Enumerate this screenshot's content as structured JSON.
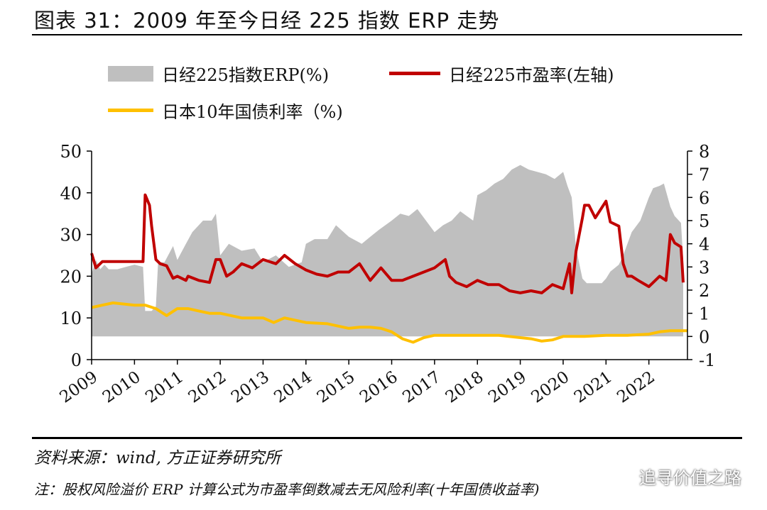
{
  "title": "图表 31：2009 年至今日经 225 指数 ERP 走势",
  "legend": {
    "erp": "日经225指数ERP(%)",
    "pe": "日经225市盈率(左轴)",
    "jgb": "日本10年国债利率（%)"
  },
  "footer": {
    "source": "资料来源：wind, 方正证券研究所",
    "note": "注：股权风险溢价 ERP 计算公式为市盈率倒数减去无风险利率(十年国债收益率)"
  },
  "watermark": "追寻价值之路",
  "colors": {
    "erp": "#bfbfbf",
    "pe": "#c00000",
    "jgb": "#ffc000"
  },
  "chart_data": {
    "type": "area",
    "x_tick_labels": [
      "2009",
      "2010",
      "2011",
      "2012",
      "2013",
      "2014",
      "2015",
      "2016",
      "2017",
      "2018",
      "2019",
      "2020",
      "2021",
      "2022"
    ],
    "y_left": {
      "lim": [
        0,
        50
      ],
      "ticks": [
        0,
        10,
        20,
        30,
        40,
        50
      ]
    },
    "y_right": {
      "lim": [
        -1,
        8
      ],
      "ticks": [
        -1,
        0,
        1,
        2,
        3,
        4,
        5,
        6,
        7,
        8
      ]
    },
    "series": [
      {
        "name": "日经225市盈率(左轴)",
        "axis": "left",
        "type": "line",
        "x": [
          2009.0,
          2009.1,
          2009.25,
          2009.5,
          2009.75,
          2010.0,
          2010.2,
          2010.25,
          2010.35,
          2010.4,
          2010.5,
          2010.6,
          2010.75,
          2010.9,
          2011.0,
          2011.2,
          2011.25,
          2011.5,
          2011.75,
          2011.9,
          2012.0,
          2012.15,
          2012.3,
          2012.5,
          2012.75,
          2013.0,
          2013.3,
          2013.5,
          2013.75,
          2014.0,
          2014.25,
          2014.5,
          2014.75,
          2015.0,
          2015.25,
          2015.5,
          2015.75,
          2016.0,
          2016.25,
          2016.5,
          2016.75,
          2017.0,
          2017.25,
          2017.35,
          2017.5,
          2017.75,
          2018.0,
          2018.25,
          2018.5,
          2018.75,
          2019.0,
          2019.25,
          2019.5,
          2019.75,
          2020.0,
          2020.15,
          2020.2,
          2020.3,
          2020.45,
          2020.5,
          2020.6,
          2020.75,
          2021.0,
          2021.1,
          2021.3,
          2021.4,
          2021.5,
          2021.6,
          2021.75,
          2022.0,
          2022.25,
          2022.4,
          2022.5,
          2022.6,
          2022.75,
          2022.8
        ],
        "values": [
          25.5,
          22,
          23.5,
          23.5,
          23.5,
          23.5,
          23.5,
          39.5,
          37,
          32,
          24,
          23,
          22.5,
          19.5,
          20,
          19,
          20,
          19,
          18.5,
          24,
          24,
          20,
          21,
          23,
          22,
          24,
          23,
          25,
          23,
          21.5,
          20.5,
          20,
          21,
          21,
          23,
          19,
          22,
          19,
          19,
          20,
          21,
          22,
          24,
          20,
          18.5,
          17.5,
          19,
          18,
          18,
          16.5,
          16,
          16.5,
          16,
          18,
          17,
          23,
          16,
          26,
          34,
          37,
          37,
          34,
          38,
          33,
          32,
          23,
          20,
          20,
          19,
          17.5,
          20,
          19,
          30,
          28,
          27,
          18.5
        ]
      },
      {
        "name": "日本10年国债利率（%)",
        "axis": "right",
        "type": "line",
        "x": [
          2009.0,
          2009.25,
          2009.5,
          2009.75,
          2010.0,
          2010.25,
          2010.5,
          2010.75,
          2011.0,
          2011.25,
          2011.5,
          2011.75,
          2012.0,
          2012.5,
          2013.0,
          2013.25,
          2013.5,
          2014.0,
          2014.5,
          2015.0,
          2015.25,
          2015.5,
          2015.75,
          2016.0,
          2016.25,
          2016.5,
          2016.75,
          2017.0,
          2017.5,
          2018.0,
          2018.5,
          2019.0,
          2019.25,
          2019.5,
          2019.75,
          2020.0,
          2020.5,
          2021.0,
          2021.5,
          2022.0,
          2022.25,
          2022.5,
          2022.75,
          2022.9
        ],
        "values": [
          1.25,
          1.35,
          1.45,
          1.4,
          1.35,
          1.35,
          1.2,
          0.9,
          1.2,
          1.2,
          1.1,
          1.0,
          1.0,
          0.8,
          0.8,
          0.6,
          0.8,
          0.6,
          0.55,
          0.35,
          0.4,
          0.4,
          0.35,
          0.2,
          -0.1,
          -0.25,
          -0.05,
          0.05,
          0.05,
          0.05,
          0.05,
          -0.05,
          -0.1,
          -0.2,
          -0.15,
          0.0,
          0.0,
          0.05,
          0.05,
          0.1,
          0.2,
          0.25,
          0.25,
          0.25
        ]
      },
      {
        "name": "日经225指数ERP(%)",
        "axis": "right",
        "type": "area",
        "x": [
          2009.0,
          2009.1,
          2009.2,
          2009.3,
          2009.4,
          2009.6,
          2009.8,
          2010.0,
          2010.2,
          2010.25,
          2010.4,
          2010.5,
          2010.55,
          2010.7,
          2010.9,
          2011.0,
          2011.2,
          2011.35,
          2011.6,
          2011.8,
          2011.9,
          2012.0,
          2012.2,
          2012.5,
          2012.8,
          2013.0,
          2013.3,
          2013.6,
          2013.9,
          2014.0,
          2014.2,
          2014.5,
          2014.7,
          2015.0,
          2015.3,
          2015.5,
          2015.7,
          2016.0,
          2016.2,
          2016.4,
          2016.6,
          2016.8,
          2017.0,
          2017.2,
          2017.4,
          2017.6,
          2017.9,
          2018.0,
          2018.2,
          2018.4,
          2018.6,
          2018.8,
          2019.0,
          2019.2,
          2019.4,
          2019.6,
          2019.8,
          2020.0,
          2020.1,
          2020.2,
          2020.3,
          2020.45,
          2020.55,
          2020.7,
          2020.9,
          2021.0,
          2021.1,
          2021.3,
          2021.4,
          2021.6,
          2021.8,
          2022.0,
          2022.1,
          2022.25,
          2022.35,
          2022.5,
          2022.6,
          2022.75,
          2022.8
        ],
        "values": [
          2.7,
          3.3,
          2.9,
          3.1,
          2.9,
          2.9,
          3.0,
          3.1,
          3.0,
          1.1,
          1.1,
          1.3,
          3.2,
          3.2,
          3.9,
          3.3,
          4.0,
          4.5,
          5.0,
          5.0,
          5.3,
          3.5,
          4.0,
          3.7,
          3.8,
          3.2,
          3.5,
          3.0,
          3.2,
          4.0,
          4.2,
          4.2,
          4.8,
          4.3,
          4.0,
          4.3,
          4.6,
          5.0,
          5.3,
          5.2,
          5.5,
          5.0,
          4.5,
          4.8,
          5.0,
          5.4,
          5.0,
          6.1,
          6.3,
          6.6,
          6.8,
          7.2,
          7.4,
          7.2,
          7.1,
          7.0,
          6.8,
          7.1,
          6.5,
          6.0,
          3.8,
          2.5,
          2.3,
          2.3,
          2.3,
          2.5,
          2.8,
          3.1,
          3.5,
          4.5,
          5.0,
          6.0,
          6.4,
          6.5,
          6.6,
          5.6,
          5.2,
          4.9,
          3.3
        ]
      }
    ]
  }
}
